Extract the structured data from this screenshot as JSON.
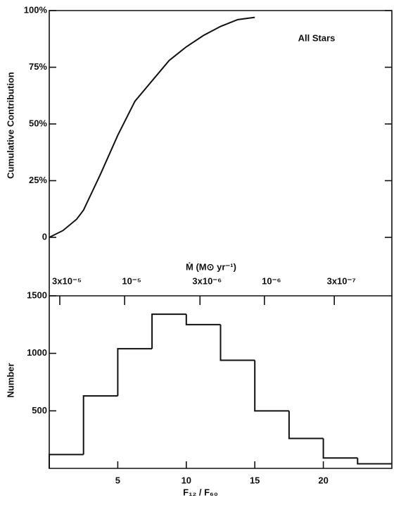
{
  "chart_data": [
    {
      "type": "line",
      "annotation": "All Stars",
      "y_label": "Cumulative Contribution",
      "x2_label": "Ṁ (M⊙ yr⁻¹)",
      "x": [
        0,
        1,
        2,
        2.5,
        3.75,
        5,
        6.25,
        7.5,
        8.75,
        10,
        11.25,
        12.5,
        13.75,
        15
      ],
      "values": [
        0,
        3,
        8,
        12,
        28,
        45,
        60,
        69,
        78,
        84,
        89,
        93,
        96,
        97
      ],
      "color": "#111111",
      "xlim": [
        0,
        25
      ],
      "ylim": [
        0,
        100
      ],
      "yticks": [
        {
          "value": 0,
          "label": "0"
        },
        {
          "value": 25,
          "label": "25%"
        },
        {
          "value": 50,
          "label": "50%"
        },
        {
          "value": 75,
          "label": "75%"
        },
        {
          "value": 100,
          "label": "100%"
        }
      ],
      "x2ticks": [
        {
          "value": 0.77,
          "label": "3x10⁻⁵"
        },
        {
          "value": 5.5,
          "label": "10⁻⁵"
        },
        {
          "value": 11.0,
          "label": "3x10⁻⁶"
        },
        {
          "value": 15.7,
          "label": "10⁻⁶"
        },
        {
          "value": 20.8,
          "label": "3x10⁻⁷"
        }
      ]
    },
    {
      "type": "histogram",
      "x_label": "F₁₂ / F₆₀",
      "y_label": "Number",
      "bins": [
        0,
        2.5,
        5,
        7.5,
        10,
        12.5,
        15,
        17.5,
        20,
        22.5,
        25
      ],
      "counts": [
        120,
        630,
        1040,
        1340,
        1250,
        940,
        500,
        260,
        90,
        40
      ],
      "color": "#111111",
      "xlim": [
        0,
        25
      ],
      "ylim": [
        0,
        1500
      ],
      "xticks": [
        5,
        10,
        15,
        20
      ],
      "yticks": [
        500,
        1000,
        1500
      ]
    }
  ]
}
